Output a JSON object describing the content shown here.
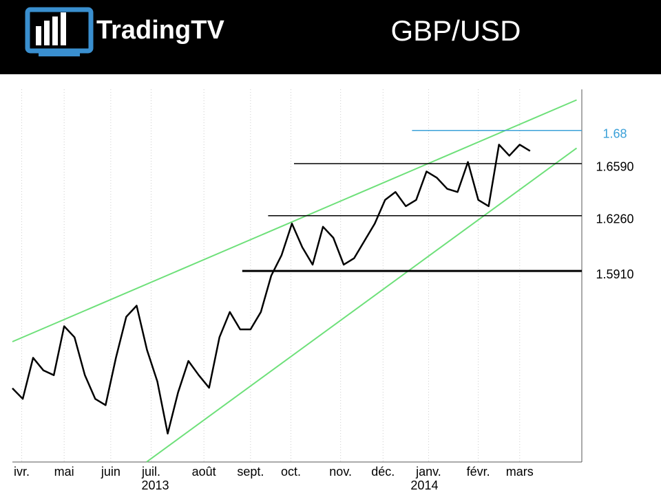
{
  "chart_data": {
    "type": "line",
    "brand": "TradingTV",
    "title": "GBP/USD",
    "series": [
      {
        "color": "#000000",
        "values": [
          1.5167,
          1.51,
          1.536,
          1.528,
          1.525,
          1.556,
          1.549,
          1.525,
          1.51,
          1.506,
          1.536,
          1.562,
          1.569,
          1.541,
          1.521,
          1.488,
          1.514,
          1.534,
          1.525,
          1.517,
          1.549,
          1.565,
          1.554,
          1.554,
          1.565,
          1.588,
          1.601,
          1.621,
          1.606,
          1.595,
          1.619,
          1.612,
          1.595,
          1.599,
          1.61,
          1.621,
          1.636,
          1.641,
          1.632,
          1.636,
          1.654,
          1.65,
          1.643,
          1.641,
          1.66,
          1.636,
          1.632,
          1.671,
          1.664,
          1.671,
          1.667
        ]
      }
    ],
    "xlim": [
      0,
      55
    ],
    "ylim": [
      1.47,
      1.706
    ],
    "xticks": [
      {
        "value": 0.9,
        "label": "ivr."
      },
      {
        "value": 5.0,
        "label": "mai"
      },
      {
        "value": 9.5,
        "label": "juin"
      },
      {
        "value": 13.4,
        "label": "juil."
      },
      {
        "value": 18.5,
        "label": "août"
      },
      {
        "value": 23.0,
        "label": "sept."
      },
      {
        "value": 26.9,
        "label": "oct."
      },
      {
        "value": 31.7,
        "label": "nov."
      },
      {
        "value": 35.8,
        "label": "déc."
      },
      {
        "value": 40.2,
        "label": "janv."
      },
      {
        "value": 45.0,
        "label": "févr."
      },
      {
        "value": 49.0,
        "label": "mars"
      }
    ],
    "year_ticks": [
      {
        "value": 13.8,
        "label": "2013"
      },
      {
        "value": 39.8,
        "label": "2014"
      }
    ],
    "grid": true,
    "trendlines": [
      {
        "color": "#6ee07a",
        "x": [
          0,
          54.5
        ],
        "values": [
          1.5462,
          1.6993
        ]
      },
      {
        "color": "#6ee07a",
        "x": [
          12.97,
          54.5
        ],
        "values": [
          1.4701,
          1.6688
        ]
      }
    ],
    "levels": [
      {
        "value": 1.68,
        "color": "#3aa0d8",
        "start": 38.6
      },
      {
        "value": 1.659,
        "label": "1.6590",
        "color": "#000000",
        "start": 27.2
      },
      {
        "value": 1.626,
        "label": "1.6260",
        "color": "#000000",
        "start": 24.7
      },
      {
        "value": 1.591,
        "label": "1.5910",
        "color": "#000000",
        "start": 22.2
      }
    ]
  }
}
